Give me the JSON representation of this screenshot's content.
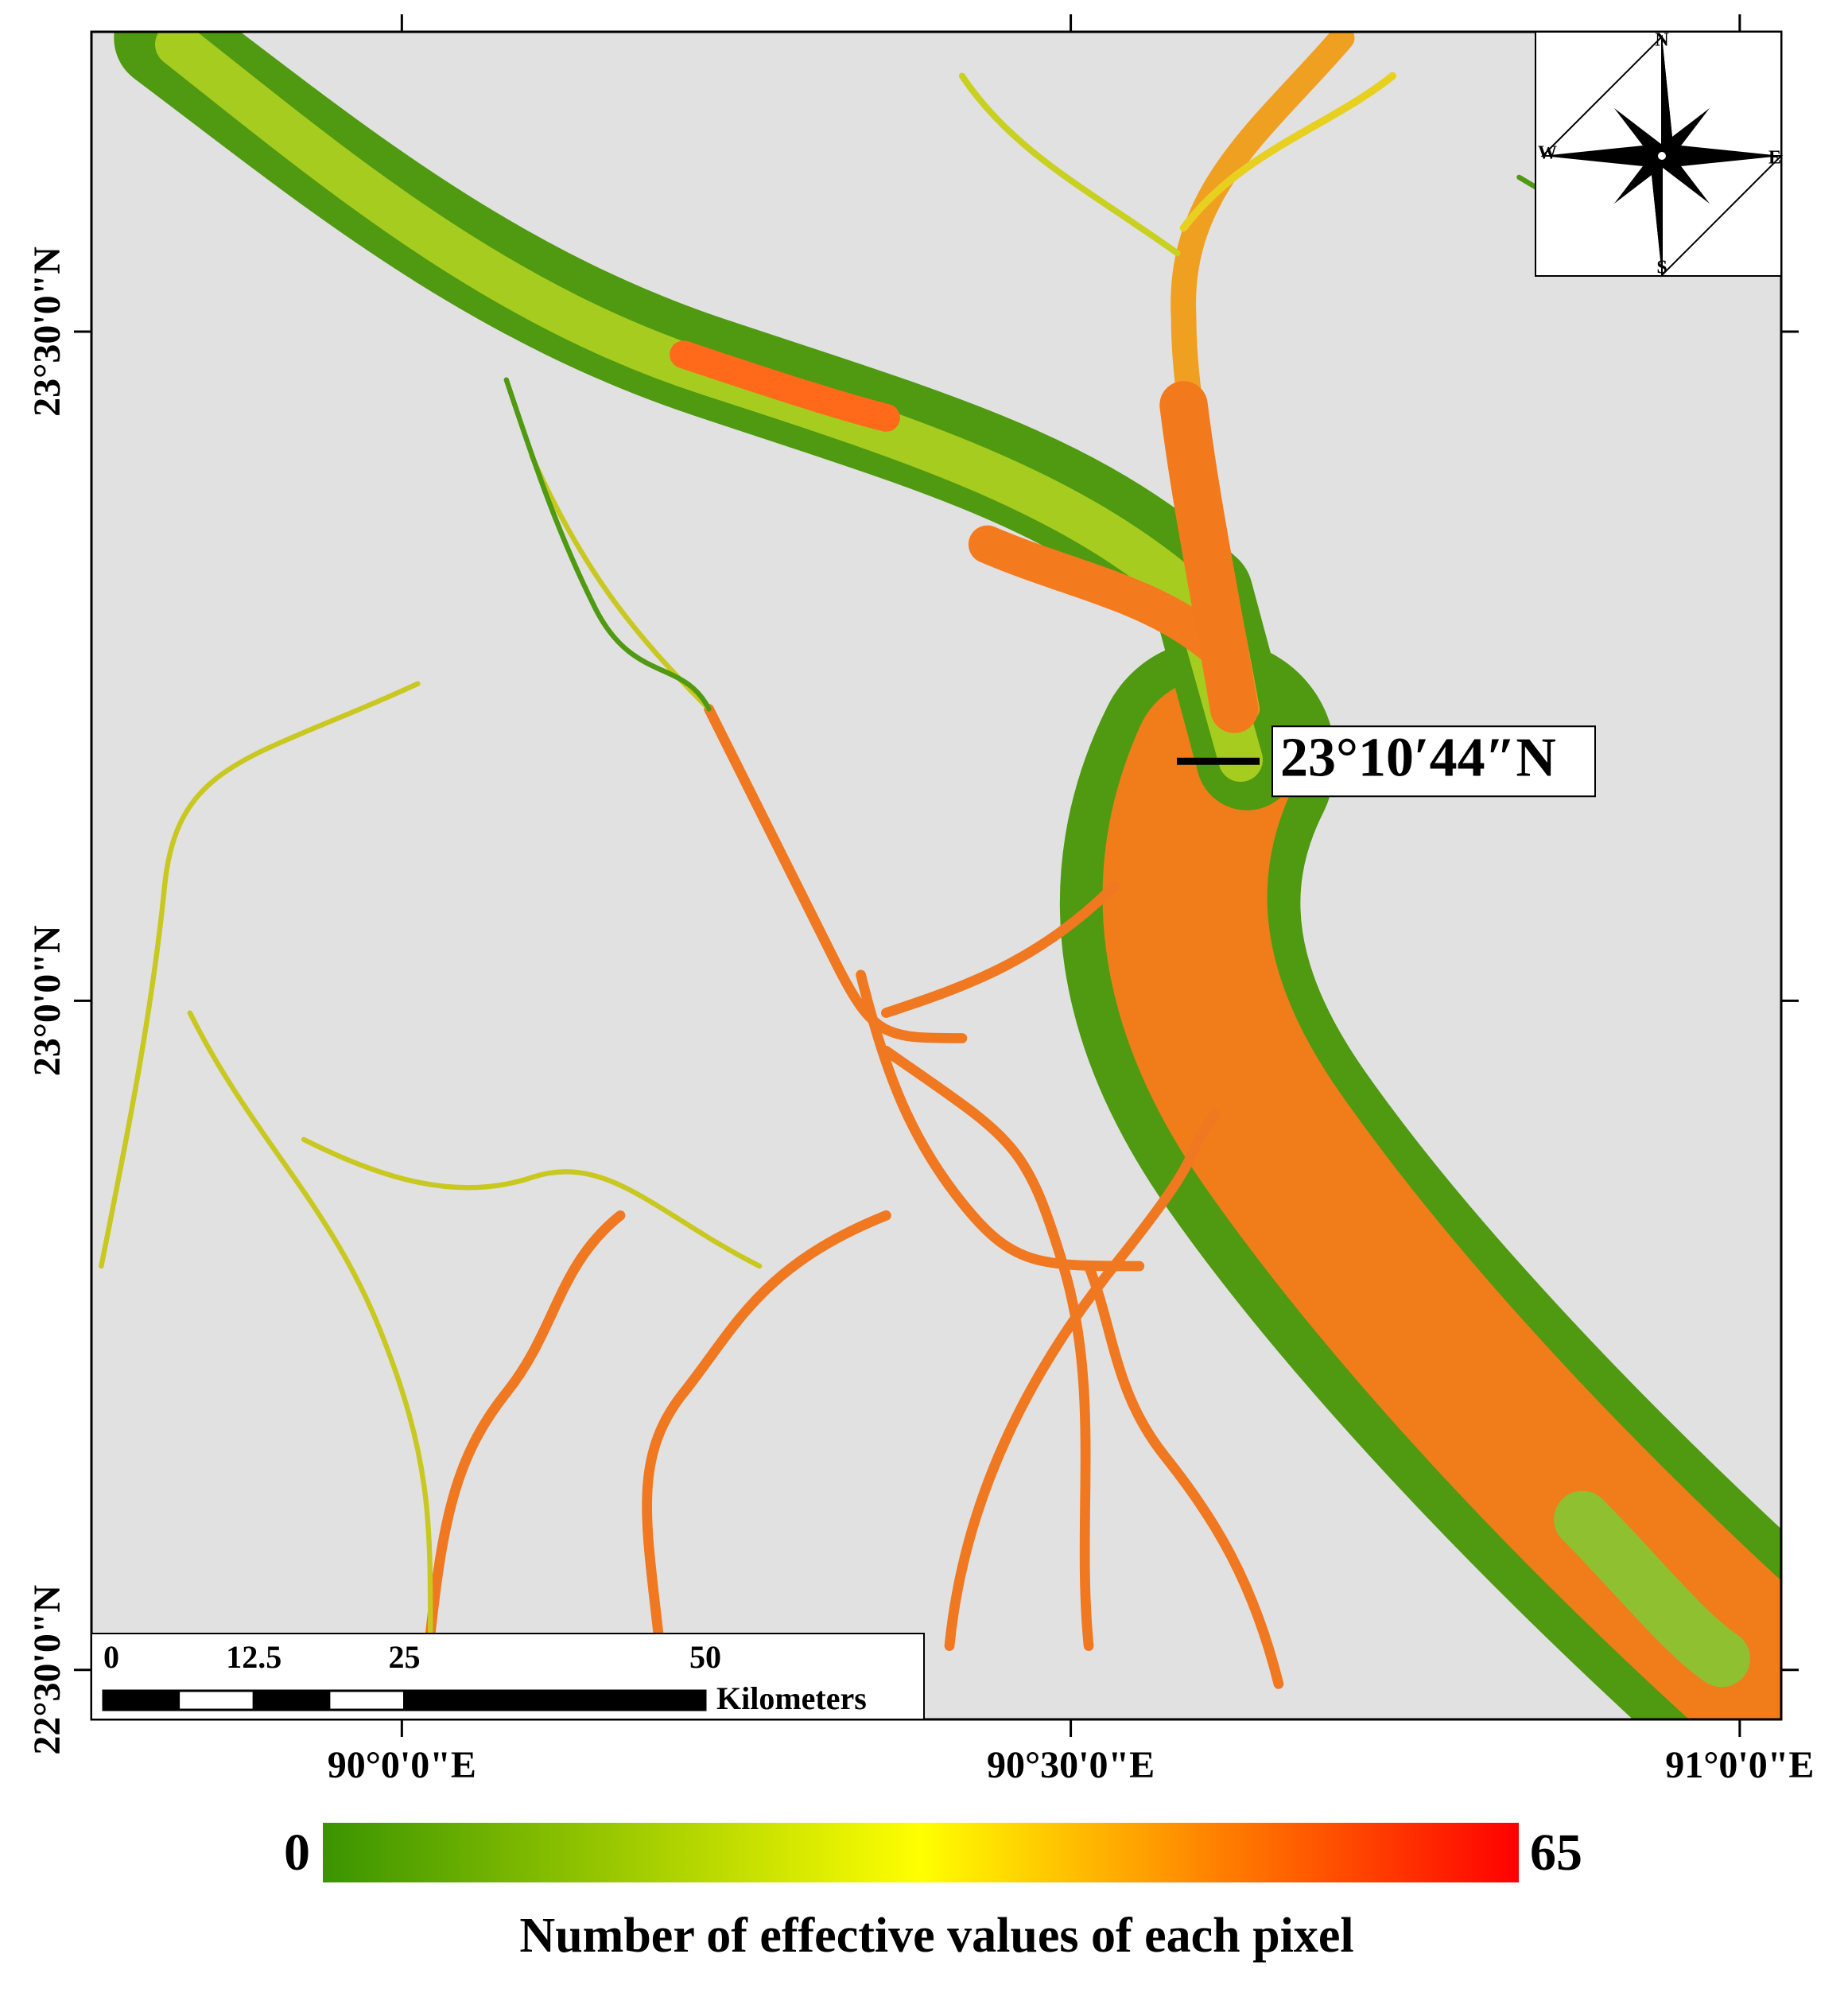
{
  "map": {
    "lon_range": [
      89.768,
      91.031
    ],
    "lat_range": [
      22.463,
      23.724
    ],
    "lon_ticks": [
      {
        "value": 90,
        "label": "90°0'0\"E"
      },
      {
        "value": 90.5,
        "label": "90°30'0\"E"
      },
      {
        "value": 91,
        "label": "91°0'0\"E"
      }
    ],
    "lat_ticks": [
      {
        "value": 23.5,
        "label": "23°30'0\"N"
      },
      {
        "value": 23,
        "label": "23°0'0\"N"
      },
      {
        "value": 22.5,
        "label": "22°30'0\"N"
      }
    ],
    "compass": {
      "n": "N",
      "s": "S",
      "e": "E",
      "w": "W"
    },
    "annotation": {
      "value": 23.1789,
      "label": "23°10′44″N"
    },
    "scale_bar": {
      "ticks": [
        0,
        12.5,
        25,
        50
      ],
      "unit": "Kilometers"
    }
  },
  "legend": {
    "min": 0,
    "max": 65,
    "title": "Number of effective values of each pixel",
    "colors": [
      "#3a9400",
      "#ffff00",
      "#ff0000"
    ]
  }
}
